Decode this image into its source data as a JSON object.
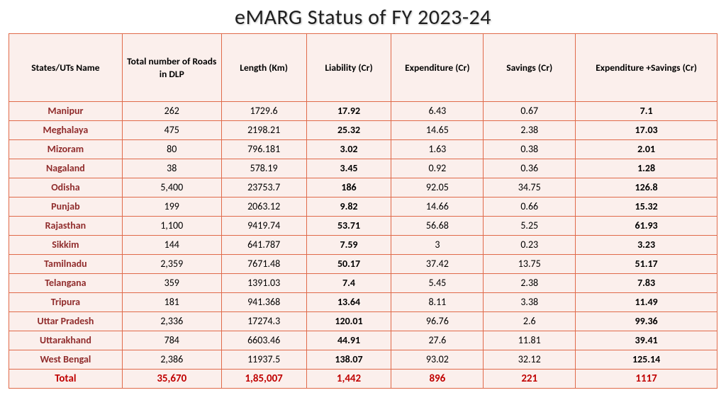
{
  "title": "eMARG Status of FY 2023-24",
  "colors": {
    "row_bg": "#fbefec",
    "header_bg": "#fbefec",
    "border": "#e06a4a",
    "header_text": "#000000",
    "state_text": "#902c2c",
    "total_text": "#c00000"
  },
  "columns": [
    "States/UTs Name",
    "Total number of Roads in DLP",
    "Length (Km)",
    "Liability (Cr)",
    "Expenditure (Cr)",
    "Savings (Cr)",
    "Expenditure +Savings (Cr)"
  ],
  "bold_cols": [
    3,
    6
  ],
  "rows": [
    [
      "Manipur",
      "262",
      "1729.6",
      "17.92",
      "6.43",
      "0.67",
      "7.1"
    ],
    [
      "Meghalaya",
      "475",
      "2198.21",
      "25.32",
      "14.65",
      "2.38",
      "17.03"
    ],
    [
      "Mizoram",
      "80",
      "796.181",
      "3.02",
      "1.63",
      "0.38",
      "2.01"
    ],
    [
      "Nagaland",
      "38",
      "578.19",
      "3.45",
      "0.92",
      "0.36",
      "1.28"
    ],
    [
      "Odisha",
      "5,400",
      "23753.7",
      "186",
      "92.05",
      "34.75",
      "126.8"
    ],
    [
      "Punjab",
      "199",
      "2063.12",
      "9.82",
      "14.66",
      "0.66",
      "15.32"
    ],
    [
      "Rajasthan",
      "1,100",
      "9419.74",
      "53.71",
      "56.68",
      "5.25",
      "61.93"
    ],
    [
      "Sikkim",
      "144",
      "641.787",
      "7.59",
      "3",
      "0.23",
      "3.23"
    ],
    [
      "Tamilnadu",
      "2,359",
      "7671.48",
      "50.17",
      "37.42",
      "13.75",
      "51.17"
    ],
    [
      "Telangana",
      "359",
      "1391.03",
      "7.4",
      "5.45",
      "2.38",
      "7.83"
    ],
    [
      "Tripura",
      "181",
      "941.368",
      "13.64",
      "8.11",
      "3.38",
      "11.49"
    ],
    [
      "Uttar Pradesh",
      "2,336",
      "17274.3",
      "120.01",
      "96.76",
      "2.6",
      "99.36"
    ],
    [
      "Uttarakhand",
      "784",
      "6603.46",
      "44.91",
      "27.6",
      "11.81",
      "39.41"
    ],
    [
      "West Bengal",
      "2,386",
      "11937.5",
      "138.07",
      "93.02",
      "32.12",
      "125.14"
    ]
  ],
  "total_row": [
    "Total",
    "35,670",
    "1,85,007",
    "1,442",
    "896",
    "221",
    "1117"
  ]
}
